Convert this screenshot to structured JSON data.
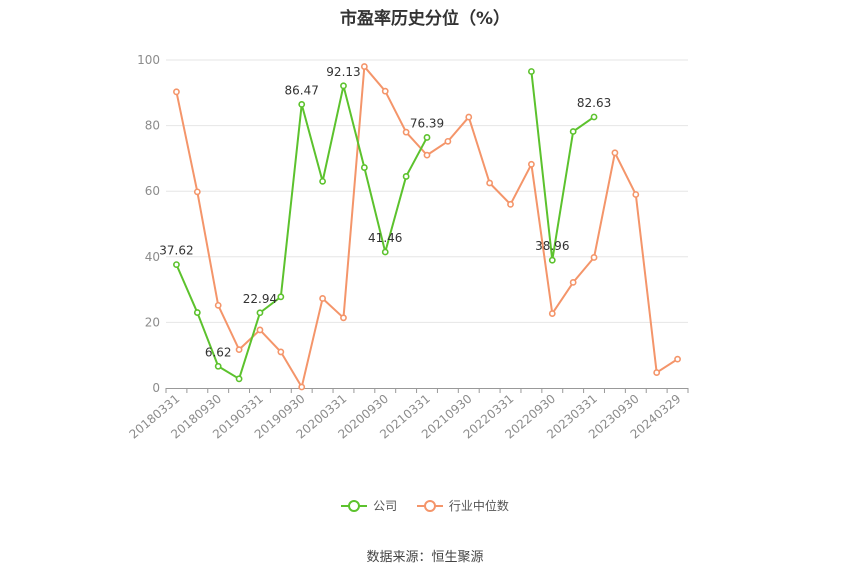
{
  "chart_data": {
    "type": "line",
    "title": "市盈率历史分位（%）",
    "xlabel": "",
    "ylabel": "",
    "ylim": [
      0,
      100
    ],
    "yticks": [
      0,
      20,
      40,
      60,
      80,
      100
    ],
    "grid": true,
    "legend_position": "bottom",
    "x": [
      "20180331",
      "20180630",
      "20180930",
      "20181231",
      "20190331",
      "20190630",
      "20190930",
      "20191231",
      "20200331",
      "20200630",
      "20200930",
      "20201231",
      "20210331",
      "20210630",
      "20210930",
      "20211231",
      "20220331",
      "20220630",
      "20220930",
      "20221231",
      "20230331",
      "20230630",
      "20230930",
      "20231231",
      "20240329"
    ],
    "x_tick_labels": [
      "20180331",
      "",
      "20180930",
      "",
      "20190331",
      "",
      "20190930",
      "",
      "20200331",
      "",
      "20200930",
      "",
      "20210331",
      "",
      "20210930",
      "",
      "20220331",
      "",
      "20220930",
      "",
      "20230331",
      "",
      "20230930",
      "",
      "20240329"
    ],
    "series": [
      {
        "name": "公司",
        "color": "#5cc22d",
        "values": [
          37.62,
          23.0,
          6.62,
          2.8,
          22.94,
          27.8,
          86.47,
          63.0,
          92.13,
          67.2,
          41.46,
          64.5,
          76.39,
          null,
          null,
          null,
          null,
          96.5,
          38.96,
          78.2,
          82.63,
          null,
          null,
          null,
          null
        ],
        "labels": {
          "0": "37.62",
          "2": "6.62",
          "4": "22.94",
          "6": "86.47",
          "8": "92.13",
          "10": "41.46",
          "12": "76.39",
          "18": "38.96",
          "20": "82.63"
        }
      },
      {
        "name": "行业中位数",
        "color": "#f4956a",
        "values": [
          90.3,
          59.8,
          25.2,
          11.7,
          17.7,
          11.0,
          0.3,
          27.3,
          21.4,
          98.0,
          90.5,
          78.0,
          71.0,
          75.2,
          82.6,
          62.5,
          56.0,
          68.2,
          22.7,
          32.2,
          39.8,
          71.7,
          59.0,
          4.7,
          8.8
        ],
        "labels": {}
      }
    ]
  },
  "source_text": "数据来源：恒生聚源"
}
